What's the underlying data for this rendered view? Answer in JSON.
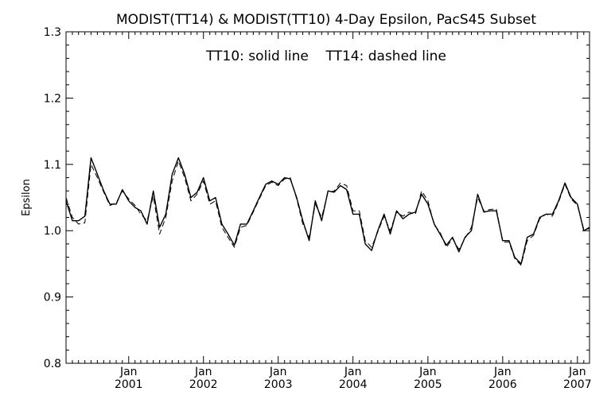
{
  "chart_data": {
    "type": "line",
    "title": "MODIST(TT14) & MODIST(TT10) 4-Day Epsilon, PacS45 Subset",
    "annotation": "TT10: solid line    TT14: dashed line",
    "ylabel": "Epsilon",
    "ylim": [
      0.8,
      1.3
    ],
    "y_ticks": [
      "0.8",
      "0.9",
      "1.0",
      "1.1",
      "1.2",
      "1.3"
    ],
    "x_ticks": [
      {
        "month": "Jan",
        "year": "2001"
      },
      {
        "month": "Jan",
        "year": "2002"
      },
      {
        "month": "Jan",
        "year": "2003"
      },
      {
        "month": "Jan",
        "year": "2004"
      },
      {
        "month": "Jan",
        "year": "2005"
      },
      {
        "month": "Jan",
        "year": "2006"
      },
      {
        "month": "Jan",
        "year": "2007"
      }
    ],
    "xlim": [
      "2000-03-01",
      "2007-03-01"
    ],
    "x": [
      "2000-03-01",
      "2000-04-01",
      "2000-05-01",
      "2000-06-01",
      "2000-07-01",
      "2000-08-01",
      "2000-09-01",
      "2000-10-01",
      "2000-11-01",
      "2000-12-01",
      "2001-01-01",
      "2001-02-01",
      "2001-03-01",
      "2001-04-01",
      "2001-05-01",
      "2001-06-01",
      "2001-07-01",
      "2001-08-01",
      "2001-09-01",
      "2001-10-01",
      "2001-11-01",
      "2001-12-01",
      "2002-01-01",
      "2002-02-01",
      "2002-03-01",
      "2002-04-01",
      "2002-05-01",
      "2002-06-01",
      "2002-07-01",
      "2002-08-01",
      "2002-09-01",
      "2002-10-01",
      "2002-11-01",
      "2002-12-01",
      "2003-01-01",
      "2003-02-01",
      "2003-03-01",
      "2003-04-01",
      "2003-05-01",
      "2003-06-01",
      "2003-07-01",
      "2003-08-01",
      "2003-09-01",
      "2003-10-01",
      "2003-11-01",
      "2003-12-01",
      "2004-01-01",
      "2004-02-01",
      "2004-03-01",
      "2004-04-01",
      "2004-05-01",
      "2004-06-01",
      "2004-07-01",
      "2004-08-01",
      "2004-09-01",
      "2004-10-01",
      "2004-11-01",
      "2004-12-01",
      "2005-01-01",
      "2005-02-01",
      "2005-03-01",
      "2005-04-01",
      "2005-05-01",
      "2005-06-01",
      "2005-07-01",
      "2005-08-01",
      "2005-09-01",
      "2005-10-01",
      "2005-11-01",
      "2005-12-01",
      "2006-01-01",
      "2006-02-01",
      "2006-03-01",
      "2006-04-01",
      "2006-05-01",
      "2006-06-01",
      "2006-07-01",
      "2006-08-01",
      "2006-09-01",
      "2006-10-01",
      "2006-11-01",
      "2006-12-01",
      "2007-01-01",
      "2007-02-01",
      "2007-03-01"
    ],
    "series": [
      {
        "name": "TT10",
        "style": "solid",
        "color": "#000000",
        "values": [
          1.045,
          1.015,
          1.015,
          1.022,
          1.11,
          1.085,
          1.06,
          1.04,
          1.04,
          1.062,
          1.045,
          1.035,
          1.03,
          1.01,
          1.06,
          1.005,
          1.025,
          1.085,
          1.11,
          1.085,
          1.05,
          1.058,
          1.08,
          1.045,
          1.05,
          1.01,
          0.995,
          0.978,
          1.01,
          1.01,
          1.03,
          1.05,
          1.07,
          1.075,
          1.07,
          1.08,
          1.078,
          1.05,
          1.015,
          0.985,
          1.045,
          1.015,
          1.06,
          1.058,
          1.068,
          1.062,
          1.025,
          1.025,
          0.98,
          0.97,
          1.0,
          1.025,
          0.995,
          1.03,
          1.018,
          1.025,
          1.028,
          1.055,
          1.04,
          1.01,
          0.995,
          0.978,
          0.99,
          0.968,
          0.99,
          1.0,
          1.055,
          1.028,
          1.03,
          1.03,
          0.985,
          0.985,
          0.96,
          0.95,
          0.99,
          0.995,
          1.02,
          1.025,
          1.025,
          1.045,
          1.072,
          1.05,
          1.04,
          1.0,
          1.005
        ]
      },
      {
        "name": "TT14",
        "style": "dashed",
        "color": "#000000",
        "values": [
          1.05,
          1.02,
          1.01,
          1.012,
          1.1,
          1.08,
          1.058,
          1.038,
          1.042,
          1.06,
          1.048,
          1.038,
          1.025,
          1.015,
          1.052,
          0.995,
          1.02,
          1.075,
          1.105,
          1.08,
          1.045,
          1.055,
          1.075,
          1.04,
          1.045,
          1.005,
          0.99,
          0.975,
          1.005,
          1.008,
          1.028,
          1.048,
          1.068,
          1.073,
          1.068,
          1.078,
          1.08,
          1.048,
          1.01,
          0.99,
          1.04,
          1.02,
          1.058,
          1.06,
          1.072,
          1.068,
          1.03,
          1.03,
          0.985,
          0.975,
          0.998,
          1.022,
          1.0,
          1.028,
          1.022,
          1.028,
          1.025,
          1.06,
          1.045,
          1.008,
          0.998,
          0.975,
          0.988,
          0.972,
          0.988,
          1.005,
          1.05,
          1.03,
          1.032,
          1.033,
          0.983,
          0.983,
          0.958,
          0.948,
          0.985,
          0.993,
          1.018,
          1.025,
          1.022,
          1.043,
          1.07,
          1.048,
          1.038,
          1.002,
          1.003
        ]
      }
    ],
    "grid": false,
    "legend": "none"
  }
}
